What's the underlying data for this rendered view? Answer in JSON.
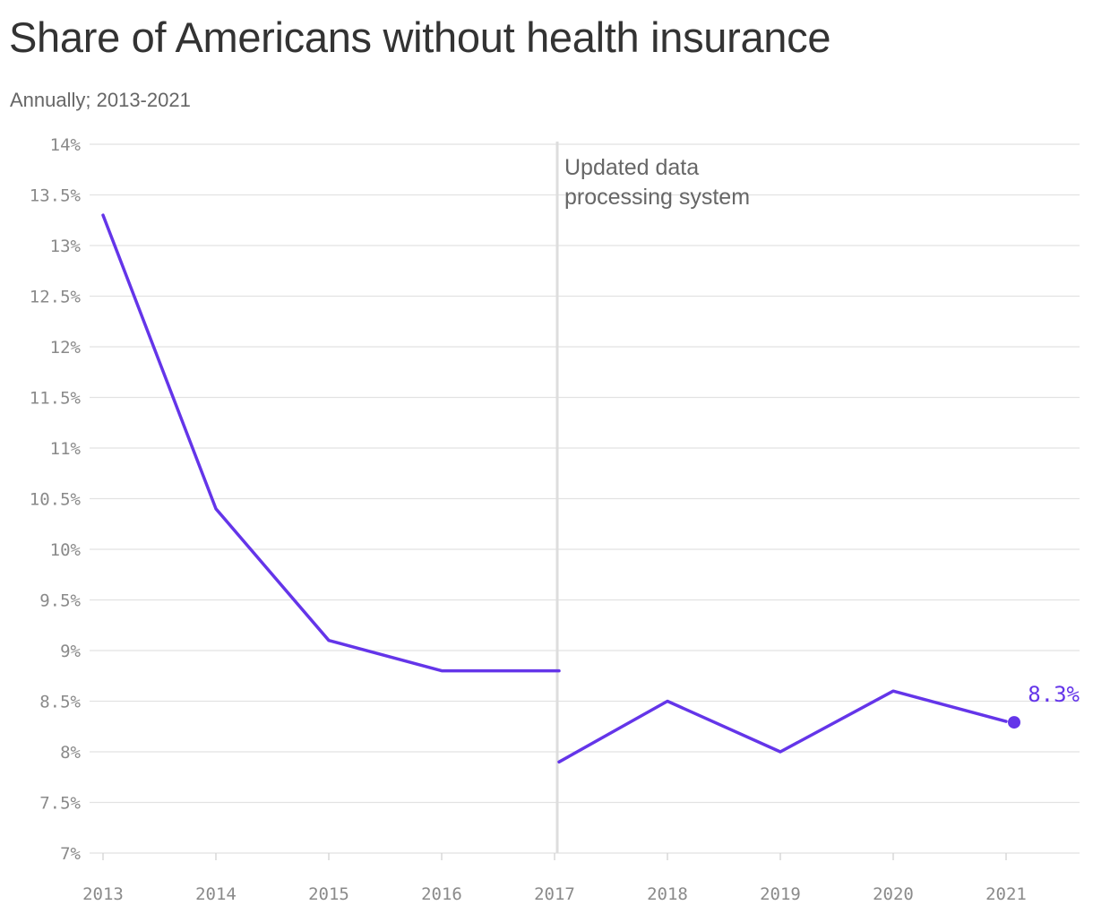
{
  "title": "Share of Americans without health insurance",
  "subtitle": "Annually; 2013-2021",
  "colors": {
    "line": "#6435e9",
    "grid": "#e2e2e2",
    "annotation_line": "#dddddd",
    "tick_text": "#8a8a8a",
    "title_text": "#333333",
    "subtitle_text": "#666666"
  },
  "chart_data": {
    "type": "line",
    "title": "Share of Americans without health insurance",
    "subtitle": "Annually; 2013-2021",
    "xlabel": "",
    "ylabel": "",
    "x": [
      2013,
      2014,
      2015,
      2016,
      2017,
      2018,
      2019,
      2020,
      2021
    ],
    "x_tick_labels": [
      "2013",
      "2014",
      "2015",
      "2016",
      "2017",
      "2018",
      "2019",
      "2020",
      "2021"
    ],
    "y_ticks": [
      7,
      7.5,
      8,
      8.5,
      9,
      9.5,
      10,
      10.5,
      11,
      11.5,
      12,
      12.5,
      13,
      13.5,
      14
    ],
    "y_tick_labels": [
      "7%",
      "7.5%",
      "8%",
      "8.5%",
      "9%",
      "9.5%",
      "10%",
      "10.5%",
      "11%",
      "11.5%",
      "12%",
      "12.5%",
      "13%",
      "13.5%",
      "14%"
    ],
    "ylim": [
      7,
      14
    ],
    "xlim": [
      2013,
      2021.7
    ],
    "grid": true,
    "legend": "none",
    "series": [
      {
        "segments": [
          [
            {
              "x": 2013,
              "y": 13.3
            },
            {
              "x": 2014,
              "y": 10.4
            },
            {
              "x": 2015,
              "y": 9.1
            },
            {
              "x": 2016,
              "y": 8.8
            },
            {
              "x": 2017,
              "y": 8.8
            }
          ],
          [
            {
              "x": 2017,
              "y": 7.9
            },
            {
              "x": 2018,
              "y": 8.5
            },
            {
              "x": 2019,
              "y": 8.0
            },
            {
              "x": 2020,
              "y": 8.6
            },
            {
              "x": 2021,
              "y": 8.3
            }
          ]
        ],
        "end_point": {
          "x": 2021,
          "y": 8.3,
          "label": "8.3%"
        }
      }
    ],
    "annotations": [
      {
        "x": 2017,
        "lines": [
          "Updated data",
          "processing system"
        ]
      }
    ]
  }
}
